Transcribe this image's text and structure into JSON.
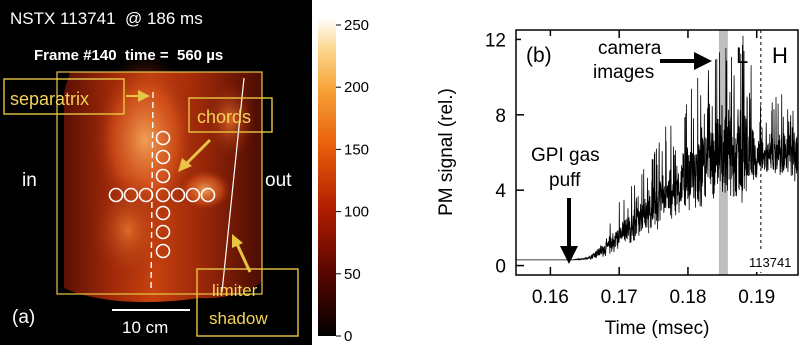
{
  "chart_data": [
    {
      "type": "heatmap",
      "panel_label": "(a)",
      "title": "NSTX 113741  @ 186 ms",
      "subtitle": "Frame #140  time =  560 µs",
      "side_labels": {
        "left": "in",
        "right": "out"
      },
      "annotations": [
        "separatrix",
        "chords",
        "limiter",
        "shadow"
      ],
      "scalebar_label": "10 cm",
      "colorbar": {
        "ticks": [
          "250",
          "200",
          "150",
          "100",
          "50",
          "0"
        ],
        "range": [
          0,
          250
        ],
        "colormap": "black-red-orange-yellow-white"
      },
      "colors": {
        "accent": "#e8c545",
        "background": "#000000"
      }
    },
    {
      "type": "line",
      "panel_label": "(b)",
      "xlabel": "Time (msec)",
      "ylabel": "PM signal (rel.)",
      "xticks": [
        "0.16",
        "0.17",
        "0.18",
        "0.19"
      ],
      "yticks": [
        "0",
        "4",
        "8",
        "12"
      ],
      "xlim": [
        0.155,
        0.196
      ],
      "ylim": [
        -0.5,
        12.5
      ],
      "series": [
        {
          "x": [
            0.155,
            0.158,
            0.161,
            0.163,
            0.165,
            0.166,
            0.168,
            0.17,
            0.172,
            0.174,
            0.176,
            0.178,
            0.18,
            0.182,
            0.184,
            0.1855,
            0.187,
            0.188,
            0.189,
            0.19,
            0.192,
            0.194,
            0.196
          ],
          "y": [
            0.3,
            0.3,
            0.3,
            0.3,
            0.35,
            0.5,
            0.9,
            1.5,
            2.1,
            2.8,
            3.4,
            4.0,
            4.6,
            5.1,
            5.6,
            5.8,
            6.0,
            6.1,
            5.9,
            5.7,
            5.8,
            6.0,
            6.0
          ],
          "noise": [
            0,
            0,
            0,
            0,
            0.05,
            0.2,
            0.5,
            0.8,
            1.0,
            1.2,
            1.5,
            1.8,
            2.0,
            2.2,
            2.4,
            2.6,
            3.0,
            3.2,
            2.5,
            1.2,
            1.3,
            1.5,
            1.6
          ]
        }
      ],
      "annotations": {
        "camera": [
          "camera",
          "images"
        ],
        "gpi": [
          "GPI gas",
          "puff"
        ],
        "modes": [
          "L",
          "H"
        ],
        "shot": "113741"
      },
      "camera_window": [
        0.1845,
        0.1858
      ],
      "lh_transition": 0.1906,
      "gas_puff_time": 0.1655,
      "colors": {
        "trace": "#000000",
        "camera_band": "#b4b4b4"
      }
    }
  ]
}
